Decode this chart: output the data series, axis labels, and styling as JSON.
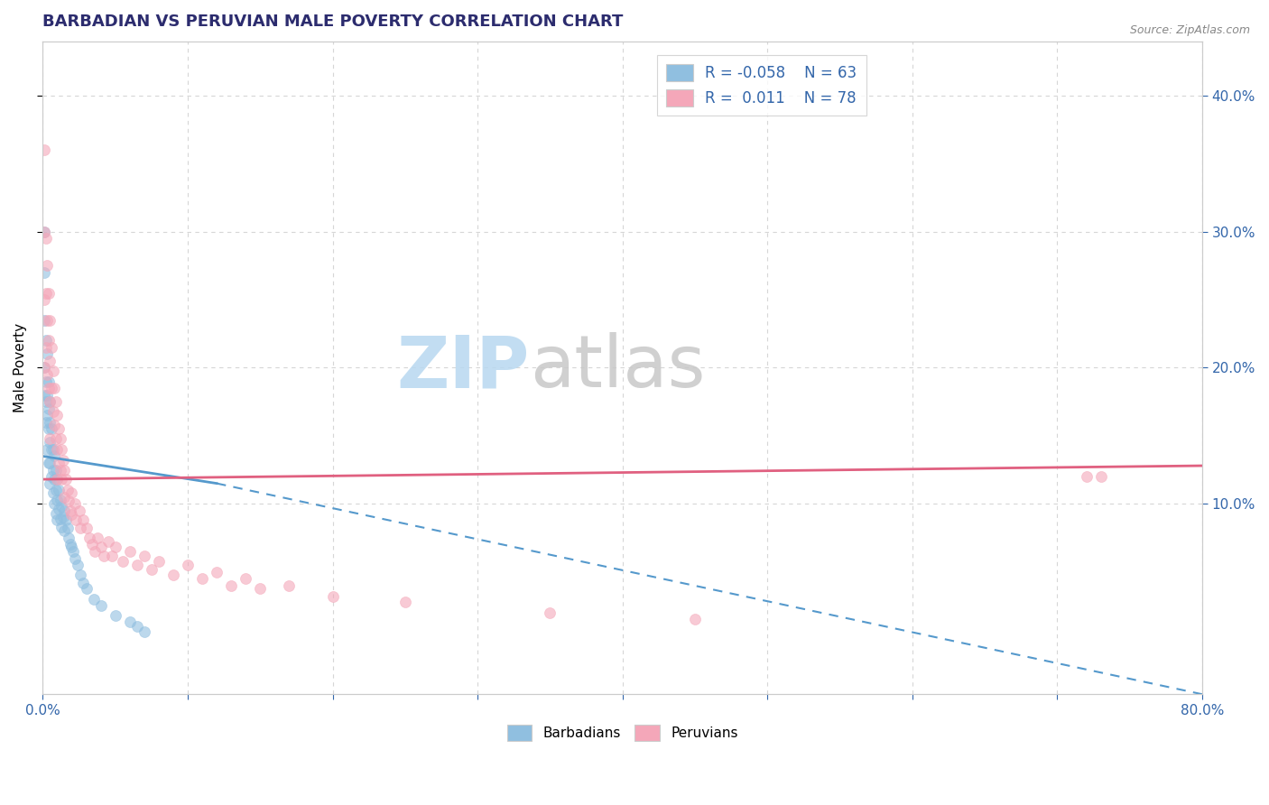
{
  "title": "BARBADIAN VS PERUVIAN MALE POVERTY CORRELATION CHART",
  "source": "Source: ZipAtlas.com",
  "ylabel": "Male Poverty",
  "right_yticks": [
    "10.0%",
    "20.0%",
    "30.0%",
    "40.0%"
  ],
  "right_ytick_vals": [
    0.1,
    0.2,
    0.3,
    0.4
  ],
  "xlim": [
    0.0,
    0.8
  ],
  "ylim": [
    -0.04,
    0.44
  ],
  "blue_color": "#90bfe0",
  "pink_color": "#f4a7b9",
  "trend_blue_color": "#5599cc",
  "trend_pink_color": "#e06080",
  "watermark_zip": "#b8d8f0",
  "watermark_atlas": "#c8c8c8",
  "background_color": "#ffffff",
  "grid_color": "#cccccc",
  "barbadians_x": [
    0.001,
    0.001,
    0.001,
    0.001,
    0.001,
    0.002,
    0.002,
    0.002,
    0.002,
    0.003,
    0.003,
    0.003,
    0.003,
    0.004,
    0.004,
    0.004,
    0.004,
    0.005,
    0.005,
    0.005,
    0.005,
    0.005,
    0.006,
    0.006,
    0.006,
    0.007,
    0.007,
    0.007,
    0.008,
    0.008,
    0.008,
    0.009,
    0.009,
    0.009,
    0.01,
    0.01,
    0.01,
    0.011,
    0.011,
    0.012,
    0.012,
    0.013,
    0.013,
    0.014,
    0.015,
    0.015,
    0.016,
    0.017,
    0.018,
    0.019,
    0.02,
    0.021,
    0.022,
    0.024,
    0.026,
    0.028,
    0.03,
    0.035,
    0.04,
    0.05,
    0.06,
    0.065,
    0.07
  ],
  "barbadians_y": [
    0.3,
    0.27,
    0.235,
    0.2,
    0.18,
    0.22,
    0.19,
    0.175,
    0.16,
    0.21,
    0.18,
    0.165,
    0.14,
    0.19,
    0.17,
    0.155,
    0.13,
    0.175,
    0.16,
    0.145,
    0.13,
    0.115,
    0.155,
    0.14,
    0.12,
    0.14,
    0.125,
    0.108,
    0.135,
    0.118,
    0.1,
    0.125,
    0.11,
    0.093,
    0.118,
    0.103,
    0.088,
    0.11,
    0.096,
    0.103,
    0.089,
    0.098,
    0.083,
    0.09,
    0.095,
    0.08,
    0.088,
    0.082,
    0.075,
    0.07,
    0.068,
    0.065,
    0.06,
    0.055,
    0.048,
    0.042,
    0.038,
    0.03,
    0.025,
    0.018,
    0.013,
    0.01,
    0.006
  ],
  "peruvians_x": [
    0.001,
    0.001,
    0.001,
    0.001,
    0.002,
    0.002,
    0.002,
    0.003,
    0.003,
    0.003,
    0.004,
    0.004,
    0.004,
    0.005,
    0.005,
    0.005,
    0.005,
    0.006,
    0.006,
    0.007,
    0.007,
    0.008,
    0.008,
    0.009,
    0.009,
    0.01,
    0.01,
    0.01,
    0.011,
    0.011,
    0.012,
    0.012,
    0.013,
    0.013,
    0.014,
    0.015,
    0.015,
    0.016,
    0.017,
    0.018,
    0.019,
    0.02,
    0.02,
    0.022,
    0.023,
    0.025,
    0.026,
    0.028,
    0.03,
    0.032,
    0.034,
    0.036,
    0.038,
    0.04,
    0.042,
    0.045,
    0.048,
    0.05,
    0.055,
    0.06,
    0.065,
    0.07,
    0.075,
    0.08,
    0.09,
    0.1,
    0.11,
    0.12,
    0.13,
    0.14,
    0.15,
    0.17,
    0.2,
    0.25,
    0.35,
    0.45,
    0.72,
    0.73
  ],
  "peruvians_y": [
    0.36,
    0.3,
    0.25,
    0.2,
    0.295,
    0.255,
    0.215,
    0.275,
    0.235,
    0.195,
    0.255,
    0.22,
    0.185,
    0.235,
    0.205,
    0.175,
    0.148,
    0.215,
    0.185,
    0.198,
    0.168,
    0.185,
    0.158,
    0.175,
    0.148,
    0.165,
    0.14,
    0.118,
    0.155,
    0.13,
    0.148,
    0.125,
    0.14,
    0.118,
    0.132,
    0.125,
    0.105,
    0.118,
    0.11,
    0.102,
    0.095,
    0.108,
    0.092,
    0.1,
    0.088,
    0.095,
    0.082,
    0.088,
    0.082,
    0.075,
    0.07,
    0.065,
    0.075,
    0.068,
    0.062,
    0.072,
    0.062,
    0.068,
    0.058,
    0.065,
    0.055,
    0.062,
    0.052,
    0.058,
    0.048,
    0.055,
    0.045,
    0.05,
    0.04,
    0.045,
    0.038,
    0.04,
    0.032,
    0.028,
    0.02,
    0.015,
    0.12,
    0.12
  ],
  "trend_blue_x0": 0.0,
  "trend_blue_y0": 0.135,
  "trend_blue_x1": 0.12,
  "trend_blue_y1": 0.115,
  "trend_blue_x2": 0.8,
  "trend_blue_y2": -0.04,
  "trend_pink_x0": 0.0,
  "trend_pink_y0": 0.118,
  "trend_pink_x1": 0.8,
  "trend_pink_y1": 0.128
}
